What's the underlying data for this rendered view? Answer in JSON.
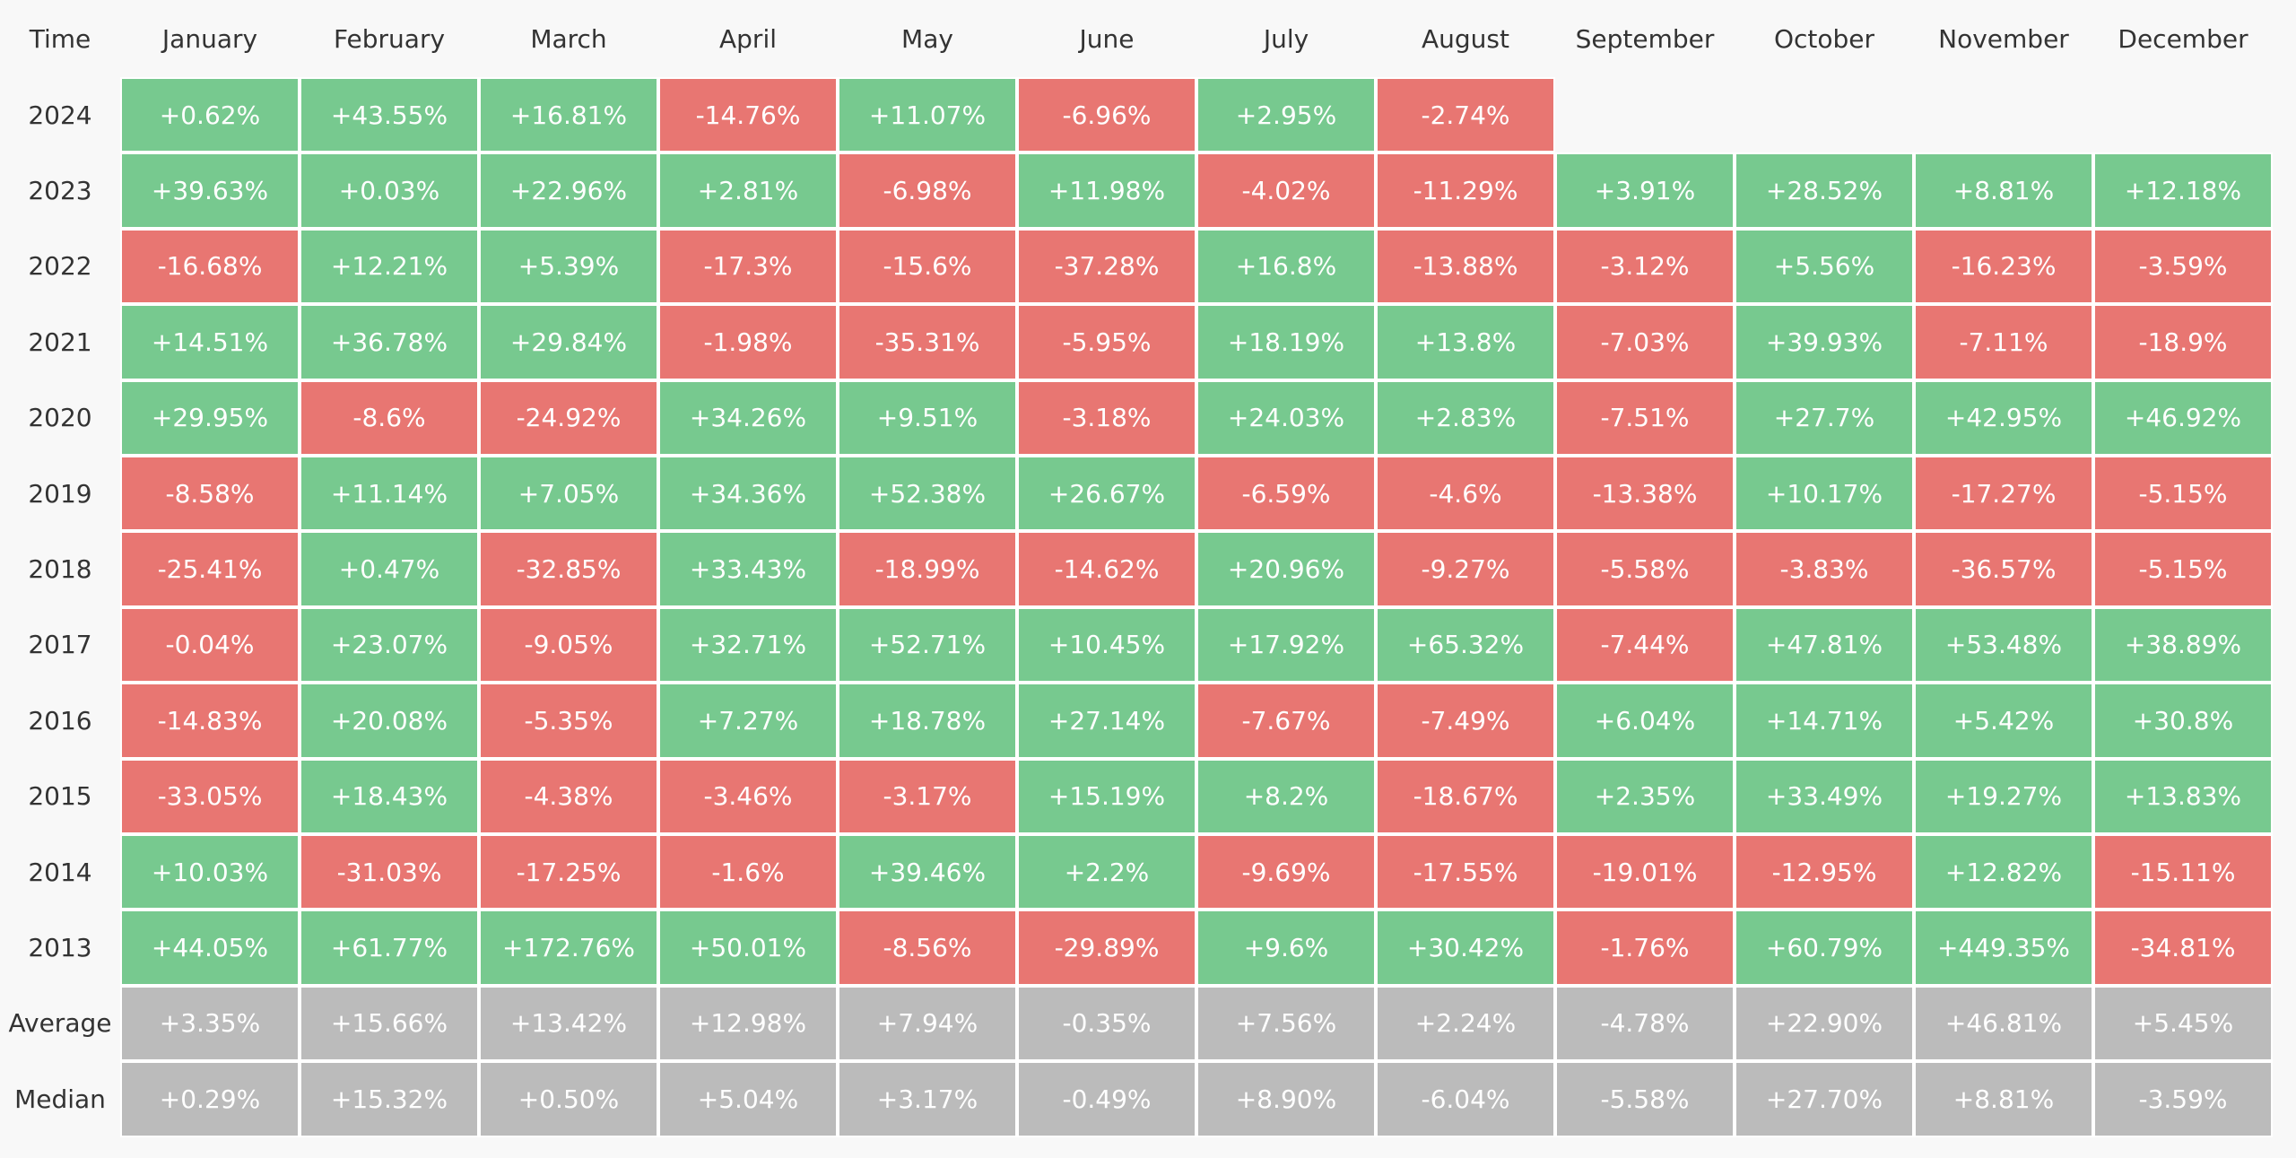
{
  "table": {
    "header": [
      "Time",
      "January",
      "February",
      "March",
      "April",
      "May",
      "June",
      "July",
      "August",
      "September",
      "October",
      "November",
      "December"
    ],
    "rows": [
      {
        "label": "2024",
        "cells": [
          "+0.62%",
          "+43.55%",
          "+16.81%",
          "-14.76%",
          "+11.07%",
          "-6.96%",
          "+2.95%",
          "-2.74%"
        ]
      },
      {
        "label": "2023",
        "cells": [
          "+39.63%",
          "+0.03%",
          "+22.96%",
          "+2.81%",
          "-6.98%",
          "+11.98%",
          "-4.02%",
          "-11.29%",
          "+3.91%",
          "+28.52%",
          "+8.81%",
          "+12.18%"
        ]
      },
      {
        "label": "2022",
        "cells": [
          "-16.68%",
          "+12.21%",
          "+5.39%",
          "-17.3%",
          "-15.6%",
          "-37.28%",
          "+16.8%",
          "-13.88%",
          "-3.12%",
          "+5.56%",
          "-16.23%",
          "-3.59%"
        ]
      },
      {
        "label": "2021",
        "cells": [
          "+14.51%",
          "+36.78%",
          "+29.84%",
          "-1.98%",
          "-35.31%",
          "-5.95%",
          "+18.19%",
          "+13.8%",
          "-7.03%",
          "+39.93%",
          "-7.11%",
          "-18.9%"
        ]
      },
      {
        "label": "2020",
        "cells": [
          "+29.95%",
          "-8.6%",
          "-24.92%",
          "+34.26%",
          "+9.51%",
          "-3.18%",
          "+24.03%",
          "+2.83%",
          "-7.51%",
          "+27.7%",
          "+42.95%",
          "+46.92%"
        ]
      },
      {
        "label": "2019",
        "cells": [
          "-8.58%",
          "+11.14%",
          "+7.05%",
          "+34.36%",
          "+52.38%",
          "+26.67%",
          "-6.59%",
          "-4.6%",
          "-13.38%",
          "+10.17%",
          "-17.27%",
          "-5.15%"
        ]
      },
      {
        "label": "2018",
        "cells": [
          "-25.41%",
          "+0.47%",
          "-32.85%",
          "+33.43%",
          "-18.99%",
          "-14.62%",
          "+20.96%",
          "-9.27%",
          "-5.58%",
          "-3.83%",
          "-36.57%",
          "-5.15%"
        ]
      },
      {
        "label": "2017",
        "cells": [
          "-0.04%",
          "+23.07%",
          "-9.05%",
          "+32.71%",
          "+52.71%",
          "+10.45%",
          "+17.92%",
          "+65.32%",
          "-7.44%",
          "+47.81%",
          "+53.48%",
          "+38.89%"
        ]
      },
      {
        "label": "2016",
        "cells": [
          "-14.83%",
          "+20.08%",
          "-5.35%",
          "+7.27%",
          "+18.78%",
          "+27.14%",
          "-7.67%",
          "-7.49%",
          "+6.04%",
          "+14.71%",
          "+5.42%",
          "+30.8%"
        ]
      },
      {
        "label": "2015",
        "cells": [
          "-33.05%",
          "+18.43%",
          "-4.38%",
          "-3.46%",
          "-3.17%",
          "+15.19%",
          "+8.2%",
          "-18.67%",
          "+2.35%",
          "+33.49%",
          "+19.27%",
          "+13.83%"
        ]
      },
      {
        "label": "2014",
        "cells": [
          "+10.03%",
          "-31.03%",
          "-17.25%",
          "-1.6%",
          "+39.46%",
          "+2.2%",
          "-9.69%",
          "-17.55%",
          "-19.01%",
          "-12.95%",
          "+12.82%",
          "-15.11%"
        ]
      },
      {
        "label": "2013",
        "cells": [
          "+44.05%",
          "+61.77%",
          "+172.76%",
          "+50.01%",
          "-8.56%",
          "-29.89%",
          "+9.6%",
          "+30.42%",
          "-1.76%",
          "+60.79%",
          "+449.35%",
          "-34.81%"
        ]
      }
    ],
    "summary_rows": [
      {
        "label": "Average",
        "cells": [
          "+3.35%",
          "+15.66%",
          "+13.42%",
          "+12.98%",
          "+7.94%",
          "-0.35%",
          "+7.56%",
          "+2.24%",
          "-4.78%",
          "+22.90%",
          "+46.81%",
          "+5.45%"
        ]
      },
      {
        "label": "Median",
        "cells": [
          "+0.29%",
          "+15.32%",
          "+0.50%",
          "+5.04%",
          "+3.17%",
          "-0.49%",
          "+8.90%",
          "-6.04%",
          "-5.58%",
          "+27.70%",
          "+8.81%",
          "-3.59%"
        ]
      }
    ],
    "colors": {
      "positive": "#77c98f",
      "negative": "#e87672",
      "summary": "#bbbbbb"
    }
  }
}
